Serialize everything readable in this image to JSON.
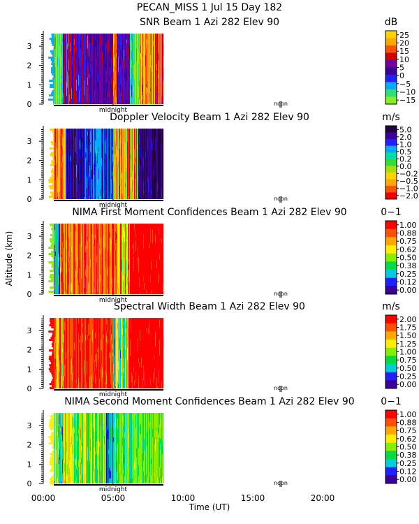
{
  "header": {
    "title": "PECAN_MISS    1 Jul 15 Day 182"
  },
  "y_axis_label": "Altitude (km)",
  "x_axis": {
    "label": "Time (UT)",
    "ticks": [
      "00:00",
      "05:00",
      "10:00",
      "15:00",
      "20:00"
    ],
    "markers": [
      "midnight",
      "noon"
    ]
  },
  "chart_data": [
    {
      "type": "heatmap",
      "title": "SNR Beam 1 Azi 282 Elev 90",
      "unit": "dB",
      "xlabel": "",
      "ylabel": "Altitude (km)",
      "yticks": [
        "0",
        "1",
        "2",
        "3"
      ],
      "ylim": [
        0,
        3.8
      ],
      "xlim_hours": [
        0,
        24
      ],
      "data_extent_hours": [
        0.75,
        8.6
      ],
      "colorbar": {
        "labels": [
          "25",
          "20",
          "15",
          "10",
          "5",
          "0",
          "−5",
          "−10",
          "−15"
        ],
        "colors": [
          "#ffd200",
          "#ffa800",
          "#ff5000",
          "#cc0000",
          "#7000a0",
          "#3a009a",
          "#2020ff",
          "#00aaff",
          "#33dd77",
          "#88ee22"
        ]
      }
    },
    {
      "type": "heatmap",
      "title": "Doppler Velocity Beam 1 Azi 282 Elev 90",
      "unit": "m/s",
      "xlabel": "",
      "ylabel": "Altitude (km)",
      "yticks": [
        "0",
        "1",
        "2",
        "3"
      ],
      "ylim": [
        0,
        3.8
      ],
      "xlim_hours": [
        0,
        24
      ],
      "data_extent_hours": [
        0.75,
        8.6
      ],
      "colorbar": {
        "labels": [
          "5.0",
          "2.0",
          "1.0",
          "0.5",
          "0.2",
          "0.0",
          "−0.2",
          "−0.5",
          "−1.0",
          "−2.0"
        ],
        "colors": [
          "#200040",
          "#3a009a",
          "#2020ff",
          "#00aaff",
          "#00ddaa",
          "#33dd33",
          "#aadd00",
          "#ffd200",
          "#ffa800",
          "#ff5000",
          "#ee0000"
        ]
      }
    },
    {
      "type": "heatmap",
      "title": "NIMA First Moment Confidences Beam 1 Azi 282 Elev 90",
      "unit": "0−1",
      "xlabel": "",
      "ylabel": "Altitude (km)",
      "yticks": [
        "0",
        "1",
        "2",
        "3"
      ],
      "ylim": [
        0,
        3.8
      ],
      "xlim_hours": [
        0,
        24
      ],
      "data_extent_hours": [
        0.75,
        8.6
      ],
      "colorbar": {
        "labels": [
          "1.00",
          "0.88",
          "0.75",
          "0.62",
          "0.50",
          "0.38",
          "0.25",
          "0.12",
          "0.00"
        ],
        "colors": [
          "#ff0000",
          "#ff5000",
          "#ffa800",
          "#ffee00",
          "#88ee00",
          "#00dd44",
          "#00ccdd",
          "#2020ff",
          "#3a009a"
        ]
      }
    },
    {
      "type": "heatmap",
      "title": "Spectral Width Beam 1 Azi 282 Elev 90",
      "unit": "m/s",
      "xlabel": "",
      "ylabel": "Altitude (km)",
      "yticks": [
        "0",
        "1",
        "2",
        "3"
      ],
      "ylim": [
        0,
        3.8
      ],
      "xlim_hours": [
        0,
        24
      ],
      "data_extent_hours": [
        0.75,
        8.6
      ],
      "colorbar": {
        "labels": [
          "2.00",
          "1.75",
          "1.50",
          "1.25",
          "1.00",
          "0.75",
          "0.50",
          "0.25",
          "0.00"
        ],
        "colors": [
          "#ff0000",
          "#ff5000",
          "#ffa800",
          "#ffee00",
          "#88ee00",
          "#00dd44",
          "#00ccdd",
          "#2020ff",
          "#3a009a"
        ]
      }
    },
    {
      "type": "heatmap",
      "title": "NIMA Second Moment Confidences Beam 1 Azi 282 Elev 90",
      "unit": "0−1",
      "xlabel": "Time (UT)",
      "ylabel": "Altitude (km)",
      "yticks": [
        "0",
        "1",
        "2",
        "3"
      ],
      "ylim": [
        0,
        3.8
      ],
      "xlim_hours": [
        0,
        24
      ],
      "data_extent_hours": [
        0.75,
        8.6
      ],
      "colorbar": {
        "labels": [
          "1.00",
          "0.88",
          "0.75",
          "0.62",
          "0.50",
          "0.38",
          "0.25",
          "0.12",
          "0.00"
        ],
        "colors": [
          "#ff0000",
          "#ff5000",
          "#ffa800",
          "#ffee00",
          "#88ee00",
          "#00dd44",
          "#00ccdd",
          "#2020ff",
          "#3a009a"
        ]
      }
    }
  ]
}
